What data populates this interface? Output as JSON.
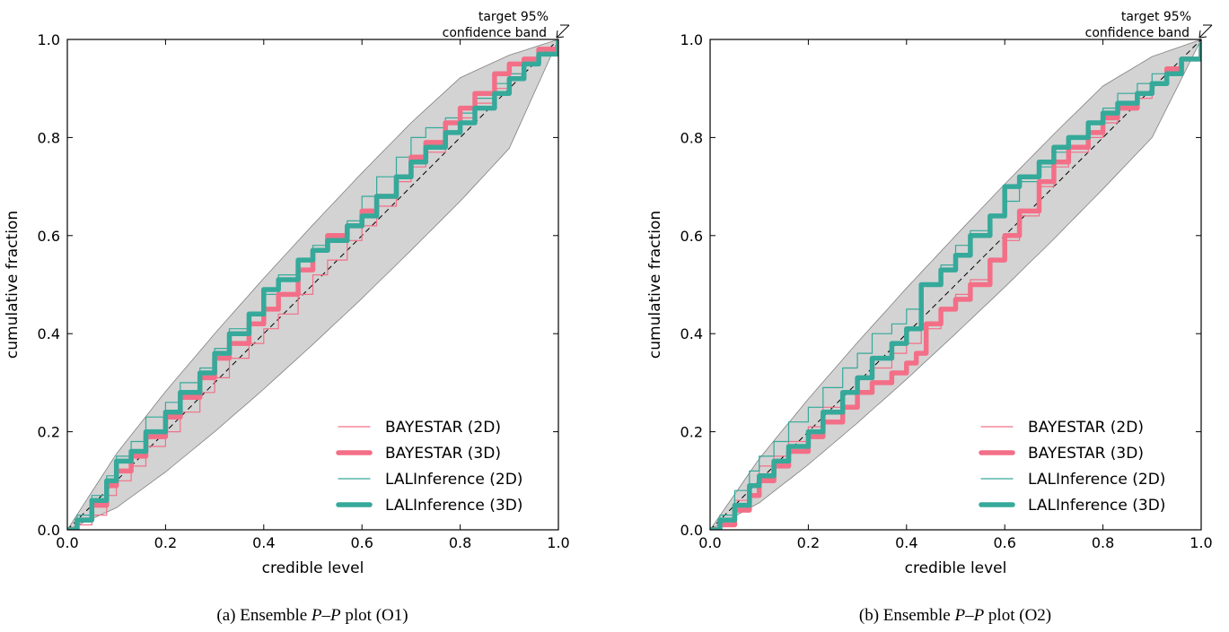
{
  "captions": [
    {
      "prefix": "(a) Ensemble ",
      "math": "P–P",
      "suffix": " plot (O1)"
    },
    {
      "prefix": "(b) Ensemble ",
      "math": "P–P",
      "suffix": " plot (O2)"
    }
  ],
  "colors": {
    "bayestar": "#f36f87",
    "lalinference": "#35a99a",
    "band_fill": "#d3d3d3",
    "band_edge": "#808080",
    "diagonal": "#000000"
  },
  "chart_data": [
    {
      "type": "line",
      "xlabel": "credible level",
      "ylabel": "cumulative fraction",
      "xlim": [
        0,
        1
      ],
      "ylim": [
        0,
        1
      ],
      "xticks": [
        "0.0",
        "0.2",
        "0.4",
        "0.6",
        "0.8",
        "1.0"
      ],
      "yticks": [
        "0.0",
        "0.2",
        "0.4",
        "0.6",
        "0.8",
        "1.0"
      ],
      "legend_position": "lower-right",
      "annotation": [
        "target 95%",
        "confidence band"
      ],
      "confidence_band": {
        "x": [
          0,
          0.1,
          0.2,
          0.3,
          0.4,
          0.5,
          0.6,
          0.7,
          0.8,
          0.9,
          1.0
        ],
        "lower": [
          0,
          0.045,
          0.118,
          0.2,
          0.287,
          0.378,
          0.472,
          0.57,
          0.67,
          0.778,
          1.0
        ],
        "upper": [
          0,
          0.155,
          0.282,
          0.4,
          0.513,
          0.622,
          0.728,
          0.83,
          0.922,
          0.968,
          1.0
        ]
      },
      "series": [
        {
          "name": "BAYESTAR (2D)",
          "color_key": "bayestar",
          "width": 1.2,
          "x": [
            0,
            0.02,
            0.05,
            0.08,
            0.1,
            0.13,
            0.16,
            0.2,
            0.23,
            0.27,
            0.3,
            0.33,
            0.37,
            0.4,
            0.43,
            0.47,
            0.5,
            0.53,
            0.57,
            0.6,
            0.63,
            0.67,
            0.7,
            0.73,
            0.77,
            0.8,
            0.83,
            0.87,
            0.9,
            0.93,
            0.96,
            1.0
          ],
          "y": [
            0,
            0.01,
            0.03,
            0.07,
            0.1,
            0.13,
            0.17,
            0.2,
            0.24,
            0.28,
            0.31,
            0.35,
            0.38,
            0.41,
            0.44,
            0.48,
            0.52,
            0.55,
            0.59,
            0.62,
            0.66,
            0.71,
            0.74,
            0.77,
            0.81,
            0.84,
            0.87,
            0.9,
            0.93,
            0.95,
            0.97,
            1.0
          ]
        },
        {
          "name": "BAYESTAR (3D)",
          "color_key": "bayestar",
          "width": 5.5,
          "x": [
            0,
            0.02,
            0.05,
            0.08,
            0.1,
            0.13,
            0.16,
            0.2,
            0.23,
            0.27,
            0.3,
            0.33,
            0.37,
            0.4,
            0.43,
            0.47,
            0.5,
            0.53,
            0.57,
            0.6,
            0.63,
            0.67,
            0.7,
            0.73,
            0.77,
            0.8,
            0.83,
            0.87,
            0.9,
            0.93,
            0.96,
            1.0
          ],
          "y": [
            0,
            0.02,
            0.05,
            0.09,
            0.12,
            0.15,
            0.19,
            0.23,
            0.27,
            0.31,
            0.35,
            0.38,
            0.42,
            0.45,
            0.48,
            0.53,
            0.57,
            0.6,
            0.62,
            0.65,
            0.68,
            0.72,
            0.76,
            0.79,
            0.83,
            0.86,
            0.89,
            0.93,
            0.95,
            0.96,
            0.98,
            1.0
          ]
        },
        {
          "name": "LALInference (2D)",
          "color_key": "lalinference",
          "width": 1.2,
          "x": [
            0,
            0.02,
            0.05,
            0.08,
            0.1,
            0.13,
            0.16,
            0.2,
            0.23,
            0.27,
            0.3,
            0.33,
            0.37,
            0.4,
            0.43,
            0.47,
            0.5,
            0.53,
            0.57,
            0.6,
            0.63,
            0.67,
            0.7,
            0.73,
            0.77,
            0.8,
            0.83,
            0.87,
            0.9,
            0.93,
            0.96,
            1.0
          ],
          "y": [
            0,
            0.03,
            0.07,
            0.11,
            0.15,
            0.18,
            0.23,
            0.26,
            0.3,
            0.33,
            0.37,
            0.41,
            0.44,
            0.48,
            0.52,
            0.55,
            0.58,
            0.6,
            0.63,
            0.68,
            0.72,
            0.76,
            0.8,
            0.82,
            0.84,
            0.85,
            0.88,
            0.91,
            0.93,
            0.95,
            0.97,
            1.0
          ]
        },
        {
          "name": "LALInference (3D)",
          "color_key": "lalinference",
          "width": 5.5,
          "x": [
            0,
            0.02,
            0.05,
            0.08,
            0.1,
            0.13,
            0.16,
            0.2,
            0.23,
            0.27,
            0.3,
            0.33,
            0.37,
            0.4,
            0.43,
            0.47,
            0.5,
            0.53,
            0.57,
            0.6,
            0.63,
            0.67,
            0.7,
            0.73,
            0.77,
            0.8,
            0.83,
            0.87,
            0.9,
            0.93,
            0.96,
            1.0
          ],
          "y": [
            0,
            0.02,
            0.06,
            0.1,
            0.14,
            0.16,
            0.2,
            0.24,
            0.28,
            0.32,
            0.36,
            0.4,
            0.44,
            0.49,
            0.51,
            0.55,
            0.57,
            0.59,
            0.62,
            0.64,
            0.68,
            0.72,
            0.75,
            0.78,
            0.81,
            0.83,
            0.86,
            0.89,
            0.92,
            0.95,
            0.97,
            1.0
          ]
        }
      ]
    },
    {
      "type": "line",
      "xlabel": "credible level",
      "ylabel": "cumulative fraction",
      "xlim": [
        0,
        1
      ],
      "ylim": [
        0,
        1
      ],
      "xticks": [
        "0.0",
        "0.2",
        "0.4",
        "0.6",
        "0.8",
        "1.0"
      ],
      "yticks": [
        "0.0",
        "0.2",
        "0.4",
        "0.6",
        "0.8",
        "1.0"
      ],
      "legend_position": "lower-right",
      "annotation": [
        "target 95%",
        "confidence band"
      ],
      "confidence_band": {
        "x": [
          0,
          0.1,
          0.2,
          0.3,
          0.4,
          0.5,
          0.6,
          0.7,
          0.8,
          0.9,
          1.0
        ],
        "lower": [
          0,
          0.055,
          0.133,
          0.218,
          0.307,
          0.4,
          0.495,
          0.593,
          0.695,
          0.8,
          1.0
        ],
        "upper": [
          0,
          0.145,
          0.267,
          0.382,
          0.493,
          0.6,
          0.705,
          0.807,
          0.905,
          0.965,
          1.0
        ]
      },
      "series": [
        {
          "name": "BAYESTAR (2D)",
          "color_key": "bayestar",
          "width": 1.2,
          "x": [
            0,
            0.02,
            0.05,
            0.08,
            0.1,
            0.13,
            0.16,
            0.2,
            0.23,
            0.27,
            0.3,
            0.33,
            0.37,
            0.4,
            0.43,
            0.47,
            0.5,
            0.53,
            0.57,
            0.6,
            0.63,
            0.67,
            0.7,
            0.73,
            0.77,
            0.8,
            0.83,
            0.87,
            0.9,
            0.93,
            0.96,
            1.0
          ],
          "y": [
            0,
            0.02,
            0.06,
            0.09,
            0.13,
            0.15,
            0.18,
            0.21,
            0.25,
            0.28,
            0.31,
            0.33,
            0.36,
            0.38,
            0.41,
            0.45,
            0.48,
            0.51,
            0.55,
            0.59,
            0.64,
            0.7,
            0.74,
            0.77,
            0.8,
            0.83,
            0.86,
            0.88,
            0.91,
            0.94,
            0.96,
            0.98
          ]
        },
        {
          "name": "BAYESTAR (3D)",
          "color_key": "bayestar",
          "width": 5.5,
          "x": [
            0,
            0.02,
            0.05,
            0.08,
            0.1,
            0.13,
            0.16,
            0.2,
            0.23,
            0.27,
            0.3,
            0.33,
            0.37,
            0.4,
            0.42,
            0.44,
            0.47,
            0.5,
            0.53,
            0.57,
            0.6,
            0.63,
            0.67,
            0.7,
            0.73,
            0.77,
            0.8,
            0.83,
            0.87,
            0.9,
            0.93,
            0.96,
            1.0
          ],
          "y": [
            0,
            0.01,
            0.04,
            0.07,
            0.1,
            0.13,
            0.16,
            0.19,
            0.22,
            0.25,
            0.28,
            0.3,
            0.32,
            0.34,
            0.36,
            0.42,
            0.45,
            0.47,
            0.5,
            0.55,
            0.6,
            0.65,
            0.71,
            0.75,
            0.78,
            0.81,
            0.84,
            0.86,
            0.89,
            0.91,
            0.94,
            0.96,
            0.98
          ]
        },
        {
          "name": "LALInference (2D)",
          "color_key": "lalinference",
          "width": 1.2,
          "x": [
            0,
            0.02,
            0.05,
            0.08,
            0.1,
            0.13,
            0.16,
            0.2,
            0.23,
            0.27,
            0.3,
            0.33,
            0.37,
            0.4,
            0.43,
            0.47,
            0.5,
            0.53,
            0.57,
            0.6,
            0.63,
            0.67,
            0.7,
            0.73,
            0.77,
            0.8,
            0.83,
            0.87,
            0.9,
            0.93,
            0.96,
            1.0
          ],
          "y": [
            0,
            0.03,
            0.08,
            0.12,
            0.15,
            0.18,
            0.22,
            0.25,
            0.29,
            0.33,
            0.36,
            0.4,
            0.42,
            0.45,
            0.5,
            0.54,
            0.58,
            0.61,
            0.64,
            0.67,
            0.71,
            0.74,
            0.77,
            0.8,
            0.83,
            0.86,
            0.89,
            0.91,
            0.93,
            0.94,
            0.96,
            0.99
          ]
        },
        {
          "name": "LALInference (3D)",
          "color_key": "lalinference",
          "width": 5.5,
          "x": [
            0,
            0.02,
            0.05,
            0.08,
            0.1,
            0.13,
            0.16,
            0.2,
            0.23,
            0.27,
            0.3,
            0.33,
            0.37,
            0.4,
            0.43,
            0.47,
            0.5,
            0.53,
            0.57,
            0.6,
            0.63,
            0.67,
            0.7,
            0.73,
            0.77,
            0.8,
            0.83,
            0.87,
            0.9,
            0.93,
            0.96,
            1.0
          ],
          "y": [
            0,
            0.02,
            0.05,
            0.09,
            0.11,
            0.14,
            0.17,
            0.2,
            0.24,
            0.28,
            0.31,
            0.35,
            0.38,
            0.41,
            0.5,
            0.53,
            0.56,
            0.6,
            0.64,
            0.7,
            0.72,
            0.75,
            0.78,
            0.8,
            0.83,
            0.85,
            0.87,
            0.89,
            0.91,
            0.93,
            0.96,
            0.99
          ]
        }
      ]
    }
  ]
}
